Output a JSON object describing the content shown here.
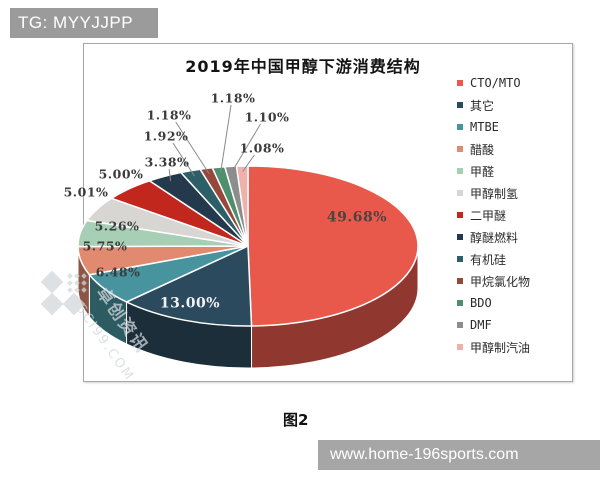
{
  "page": {
    "tg_badge": "TG: MYYJJPP",
    "caption": "图2",
    "footer_url": "www.home-196sports.com",
    "watermark": {
      "line1": "卓创资讯",
      "line2": "SCI99.COM"
    }
  },
  "chart_data": {
    "type": "pie",
    "title": "2019年中国甲醇下游消费结构",
    "legend_position": "right",
    "style": "3d-pie",
    "series": [
      {
        "name": "CTO/MTO",
        "value": 49.68,
        "label": "49.68%",
        "color": "#e8594c"
      },
      {
        "name": "其它",
        "value": 13.0,
        "label": "13.00%",
        "color": "#2c4a5e"
      },
      {
        "name": "MTBE",
        "value": 6.48,
        "label": "6.48%",
        "color": "#47939e"
      },
      {
        "name": "醋酸",
        "value": 5.75,
        "label": "5.75%",
        "color": "#e28a70"
      },
      {
        "name": "甲醛",
        "value": 5.26,
        "label": "5.26%",
        "color": "#a6cfb6"
      },
      {
        "name": "甲醇制氢",
        "value": 5.01,
        "label": "5.01%",
        "color": "#d8d6d3"
      },
      {
        "name": "二甲醚",
        "value": 5.0,
        "label": "5.00%",
        "color": "#c1271d"
      },
      {
        "name": "醇醚燃料",
        "value": 3.38,
        "label": "3.38%",
        "color": "#24394b"
      },
      {
        "name": "有机硅",
        "value": 1.92,
        "label": "1.92%",
        "color": "#2d5f68"
      },
      {
        "name": "甲烷氯化物",
        "value": 1.18,
        "label": "1.18%",
        "color": "#96493a"
      },
      {
        "name": "BDO",
        "value": 1.18,
        "label": "1.18%",
        "color": "#4e8f6e"
      },
      {
        "name": "DMF",
        "value": 1.1,
        "label": "1.10%",
        "color": "#8d8d8d"
      },
      {
        "name": "甲醇制汽油",
        "value": 1.08,
        "label": "1.08%",
        "color": "#f0b1ac"
      }
    ]
  }
}
